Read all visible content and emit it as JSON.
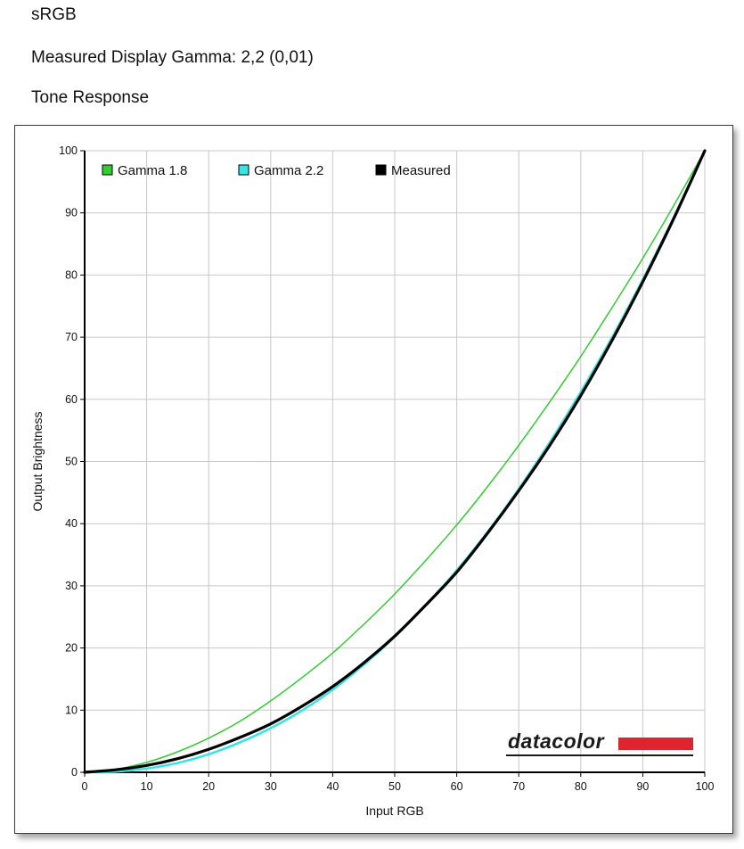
{
  "header": {
    "profile_name": "sRGB",
    "measured_gamma": "Measured Display Gamma: 2,2 (0,01)",
    "section_title": "Tone Response"
  },
  "brand": {
    "logo_text": "datacolor",
    "bar_color": "#e0242f"
  },
  "chart_data": {
    "type": "line",
    "title": "",
    "xlabel": "Input RGB",
    "ylabel": "Output Brightness",
    "xlim": [
      0,
      100
    ],
    "ylim": [
      0,
      100
    ],
    "x_ticks": [
      "0",
      "10",
      "20",
      "30",
      "40",
      "50",
      "60",
      "70",
      "80",
      "90",
      "100"
    ],
    "y_ticks": [
      "0",
      "10",
      "20",
      "30",
      "40",
      "50",
      "60",
      "70",
      "80",
      "90",
      "100"
    ],
    "grid": true,
    "legend_placement": "top-left",
    "x": [
      0,
      5,
      10,
      15,
      20,
      25,
      30,
      35,
      40,
      45,
      50,
      55,
      60,
      65,
      70,
      75,
      80,
      85,
      90,
      95,
      100
    ],
    "series": [
      {
        "name": "Gamma 1.8",
        "color": "#33cc33",
        "values": [
          0,
          0.5,
          1.6,
          3.3,
          5.5,
          8.2,
          11.5,
          15.2,
          19.2,
          23.8,
          28.7,
          34.1,
          39.8,
          46.0,
          52.6,
          59.6,
          66.9,
          74.7,
          82.7,
          91.2,
          100
        ]
      },
      {
        "name": "Gamma 2.2",
        "color": "#33e5e5",
        "values": [
          0,
          0.1,
          0.6,
          1.5,
          2.9,
          4.8,
          7.1,
          9.9,
          13.3,
          17.3,
          21.8,
          26.9,
          32.5,
          38.7,
          45.6,
          53.1,
          61.2,
          69.9,
          79.3,
          89.3,
          100
        ]
      },
      {
        "name": "Measured",
        "color": "#000000",
        "values": [
          0,
          0.4,
          1.1,
          2.2,
          3.7,
          5.6,
          7.8,
          10.6,
          13.8,
          17.6,
          21.9,
          26.9,
          32.2,
          38.5,
          45.3,
          52.6,
          60.6,
          69.4,
          78.9,
          89.1,
          100
        ]
      }
    ]
  }
}
